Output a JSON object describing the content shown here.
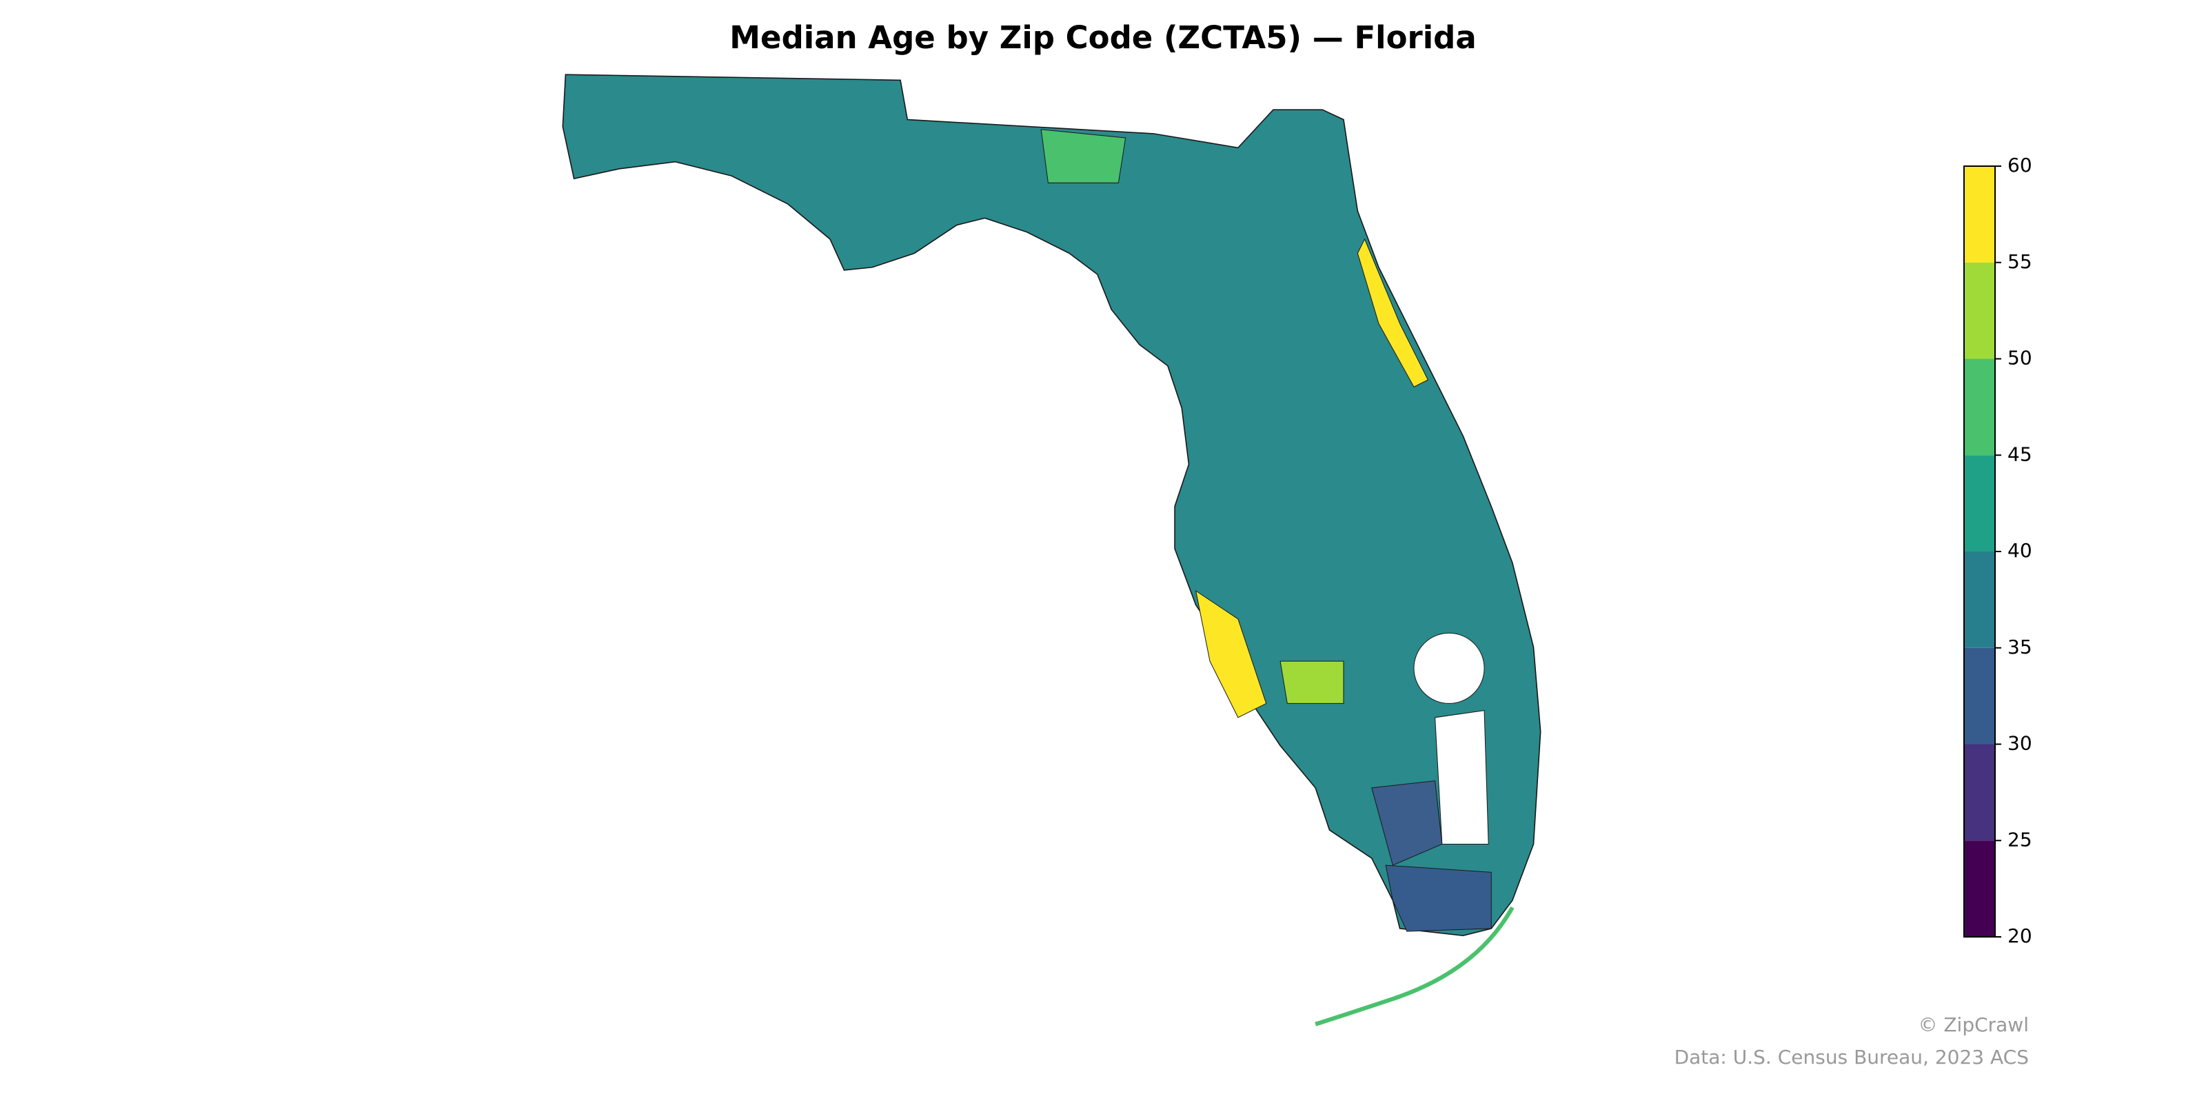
{
  "title": "Median Age by Zip Code (ZCTA5) — Florida",
  "colorbar": {
    "lim": [
      20,
      60
    ],
    "ticks": [
      20,
      25,
      30,
      35,
      40,
      45,
      50,
      55,
      60
    ],
    "colors": [
      "#440154",
      "#46327e",
      "#365c8d",
      "#277f8e",
      "#1fa187",
      "#4ac16d",
      "#a0da39",
      "#fde725"
    ]
  },
  "footer": {
    "credit": "© ZipCrawl",
    "source": "Data: U.S. Census Bureau, 2023 ACS"
  }
}
